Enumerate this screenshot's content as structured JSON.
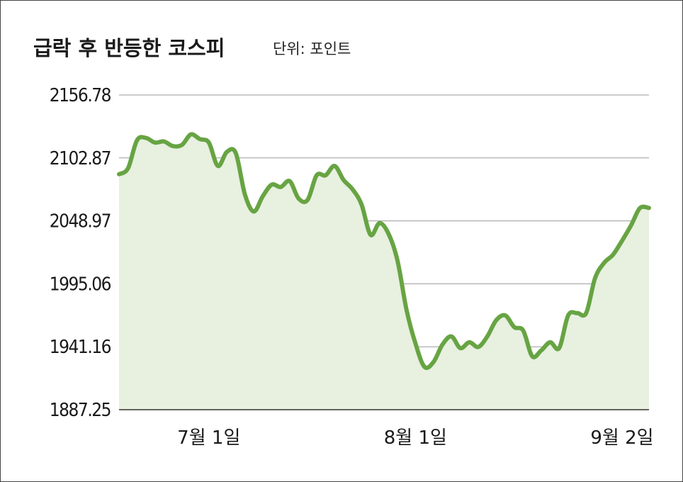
{
  "title": "급락 후 반등한 코스피",
  "unit_label": "단위: 포인트",
  "colors": {
    "line": "#67a443",
    "area": "#e8f0e0",
    "grid": "#9a9a9a",
    "axis": "#333333"
  },
  "chart_data": {
    "type": "area",
    "title": "급락 후 반등한 코스피",
    "unit": "단위: 포인트",
    "y_ticks": [
      "2156.78",
      "2102.87",
      "2048.97",
      "1995.06",
      "1941.16",
      "1887.25"
    ],
    "ylim": [
      1887.25,
      2156.78
    ],
    "grid": true,
    "x_ticks": [
      {
        "label": "7월 1일",
        "index": 10
      },
      {
        "label": "8월 1일",
        "index": 33
      },
      {
        "label": "9월 2일",
        "index": 56
      }
    ],
    "series": [
      {
        "values": [
          2089,
          2094,
          2118,
          2120,
          2116,
          2117,
          2113,
          2114,
          2123,
          2119,
          2116,
          2096,
          2108,
          2107,
          2072,
          2057,
          2070,
          2080,
          2078,
          2083,
          2068,
          2067,
          2088,
          2088,
          2096,
          2084,
          2076,
          2063,
          2037,
          2047,
          2038,
          2015,
          1973,
          1944,
          1924,
          1928,
          1943,
          1950,
          1940,
          1945,
          1941,
          1950,
          1964,
          1968,
          1958,
          1955,
          1933,
          1938,
          1945,
          1940,
          1968,
          1970,
          1970,
          2000,
          2013,
          2020,
          2032,
          2045,
          2060,
          2060
        ]
      }
    ]
  }
}
